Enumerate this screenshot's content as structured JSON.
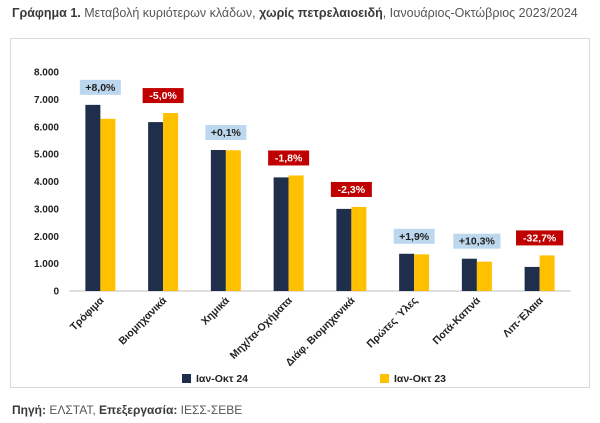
{
  "title": {
    "prefix": "Γράφημα 1.",
    "text_before": " Μεταβολή κυριότερων κλάδων, ",
    "emphasis": "χωρίς πετρελαιοειδή",
    "text_after": ", Ιανουάριος-Οκτώβριος 2023/2024"
  },
  "source": {
    "label1": "Πηγή:",
    "value1": " ΕΛΣΤΑΤ, ",
    "label2": "Επεξεργασία:",
    "value2": " ΙΕΣΣ-ΣΕΒΕ"
  },
  "colors": {
    "series_2024": "#1f2e4a",
    "series_2023": "#ffc000",
    "positive_box": "#bdd7ee",
    "negative_box": "#c00000"
  },
  "chart_data": {
    "type": "bar",
    "categories": [
      "Τρόφιμα",
      "Βιομηχανικά",
      "Χημικά",
      "Μηχ/τα-Οχήματα",
      "Διάφ. Βιομηχανικά",
      "Πρώτες Ύλες",
      "Ποτά-Καπνά",
      "Λιπ-Έλαια"
    ],
    "series": [
      {
        "name": "Ιαν-Οκτ 24",
        "values": [
          6800,
          6170,
          5150,
          4150,
          3000,
          1360,
          1180,
          880
        ]
      },
      {
        "name": "Ιαν-Οκτ 23",
        "values": [
          6290,
          6500,
          5140,
          4220,
          3070,
          1340,
          1070,
          1300
        ]
      }
    ],
    "change_labels": [
      "+8,0%",
      "-5,0%",
      "+0,1%",
      "-1,8%",
      "-2,3%",
      "+1,9%",
      "+10,3%",
      "-32,7%"
    ],
    "ylim": [
      0,
      8000
    ],
    "yticks": [
      "0",
      "1.000",
      "2.000",
      "3.000",
      "4.000",
      "5.000",
      "6.000",
      "7.000",
      "8.000"
    ],
    "legend_position": "bottom",
    "grid": false
  }
}
